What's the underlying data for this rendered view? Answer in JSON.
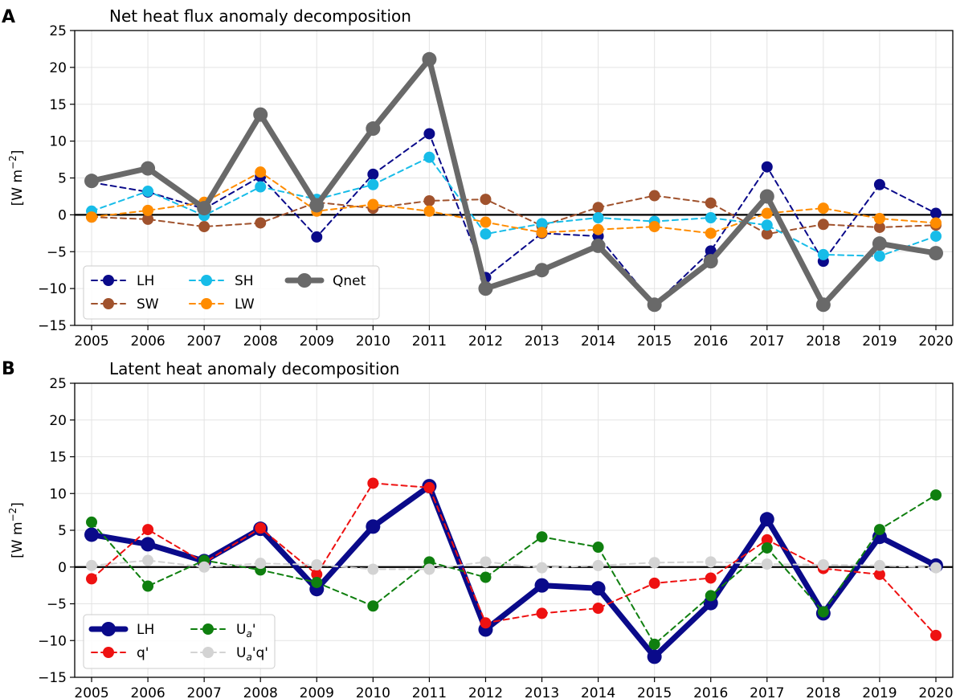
{
  "chart_data": [
    {
      "type": "line",
      "panel_label": "A",
      "title": "Net heat flux anomaly decomposition",
      "xlabel": "",
      "ylabel_main": "[W m",
      "ylabel_sup": "−2",
      "ylabel_end": "]",
      "ylim": [
        -15,
        25
      ],
      "yticks": [
        -15,
        -10,
        -5,
        0,
        5,
        10,
        15,
        20,
        25
      ],
      "grid": true,
      "zero_line": true,
      "legend_location": "lower-left",
      "categories": [
        "2005",
        "2006",
        "2007",
        "2008",
        "2009",
        "2010",
        "2011",
        "2012",
        "2013",
        "2014",
        "2015",
        "2016",
        "2017",
        "2018",
        "2019",
        "2020"
      ],
      "series": [
        {
          "name": "LH",
          "label_main": "LH",
          "label_sub": "",
          "label_suffix": "",
          "color": "#0a0a8a",
          "style": "dashed",
          "width": 2,
          "marker": 7,
          "values": [
            4.4,
            3.1,
            0.8,
            5.2,
            -3.0,
            5.5,
            11.0,
            -8.5,
            -2.5,
            -2.9,
            -12.2,
            -4.9,
            6.5,
            -6.3,
            4.1,
            0.2
          ]
        },
        {
          "name": "SW",
          "label_main": "SW",
          "label_sub": "",
          "label_suffix": "",
          "color": "#a0522d",
          "style": "dashed",
          "width": 2,
          "marker": 7,
          "values": [
            -0.3,
            -0.6,
            -1.6,
            -1.1,
            1.7,
            0.9,
            1.9,
            2.1,
            -1.5,
            1.0,
            2.6,
            1.6,
            -2.6,
            -1.3,
            -1.7,
            -1.4
          ]
        },
        {
          "name": "SH",
          "label_main": "SH",
          "label_sub": "",
          "label_suffix": "",
          "color": "#17bce8",
          "style": "dashed",
          "width": 2,
          "marker": 7,
          "values": [
            0.5,
            3.2,
            -0.1,
            3.8,
            2.1,
            4.1,
            7.8,
            -2.6,
            -1.2,
            -0.4,
            -0.9,
            -0.4,
            -1.4,
            -5.4,
            -5.6,
            -2.9
          ]
        },
        {
          "name": "LW",
          "label_main": "LW",
          "label_sub": "",
          "label_suffix": "",
          "color": "#ff8c00",
          "style": "dashed",
          "width": 2,
          "marker": 7,
          "values": [
            -0.3,
            0.6,
            1.7,
            5.8,
            0.5,
            1.4,
            0.5,
            -1.0,
            -2.4,
            -2.0,
            -1.6,
            -2.5,
            0.2,
            0.9,
            -0.5,
            -1.1
          ]
        },
        {
          "name": "Qnet",
          "label_main": "Qnet",
          "label_sub": "",
          "label_suffix": "",
          "color": "#696969",
          "style": "solid",
          "width": 7,
          "marker": 9,
          "values": [
            4.6,
            6.3,
            0.9,
            13.6,
            1.3,
            11.7,
            21.1,
            -10.0,
            -7.5,
            -4.2,
            -12.2,
            -6.3,
            2.5,
            -12.2,
            -3.9,
            -5.2
          ]
        }
      ]
    },
    {
      "type": "line",
      "panel_label": "B",
      "title": "Latent heat anomaly decomposition",
      "xlabel": "",
      "ylabel_main": "[W m",
      "ylabel_sup": "−2",
      "ylabel_end": "]",
      "ylim": [
        -15,
        25
      ],
      "yticks": [
        -15,
        -10,
        -5,
        0,
        5,
        10,
        15,
        20,
        25
      ],
      "grid": true,
      "zero_line": true,
      "legend_location": "lower-left",
      "categories": [
        "2005",
        "2006",
        "2007",
        "2008",
        "2009",
        "2010",
        "2011",
        "2012",
        "2013",
        "2014",
        "2015",
        "2016",
        "2017",
        "2018",
        "2019",
        "2020"
      ],
      "series": [
        {
          "name": "LH",
          "label_main": "LH",
          "label_sub": "",
          "label_suffix": "",
          "color": "#0a0a8a",
          "style": "solid",
          "width": 7,
          "marker": 9,
          "values": [
            4.4,
            3.1,
            0.8,
            5.2,
            -3.0,
            5.5,
            11.0,
            -8.5,
            -2.5,
            -2.9,
            -12.2,
            -4.9,
            6.5,
            -6.3,
            4.1,
            0.2
          ]
        },
        {
          "name": "q'",
          "label_main": "q'",
          "label_sub": "",
          "label_suffix": "",
          "color": "#ee1111",
          "style": "dashed",
          "width": 2,
          "marker": 7,
          "values": [
            -1.6,
            5.1,
            0.6,
            5.3,
            -1.0,
            11.4,
            10.8,
            -7.6,
            -6.3,
            -5.6,
            -2.2,
            -1.5,
            3.7,
            -0.2,
            -1.0,
            -9.3
          ]
        },
        {
          "name": "Ua'",
          "label_main": "U",
          "label_sub": "a",
          "label_suffix": "'",
          "color": "#0f7f0f",
          "style": "dashed",
          "width": 2,
          "marker": 7,
          "values": [
            6.1,
            -2.6,
            0.9,
            -0.4,
            -2.1,
            -5.3,
            0.7,
            -1.4,
            4.1,
            2.7,
            -10.5,
            -3.9,
            2.6,
            -6.1,
            5.1,
            9.8
          ]
        },
        {
          "name": "Ua'q'",
          "label_main": "U",
          "label_sub": "a",
          "label_suffix": "'q'",
          "color": "#d3d3d3",
          "style": "dashed",
          "width": 2,
          "marker": 7,
          "values": [
            0.2,
            0.9,
            0.0,
            0.5,
            0.3,
            -0.3,
            -0.3,
            0.7,
            -0.1,
            0.2,
            0.6,
            0.7,
            0.4,
            0.3,
            0.2,
            -0.1
          ]
        }
      ]
    }
  ]
}
